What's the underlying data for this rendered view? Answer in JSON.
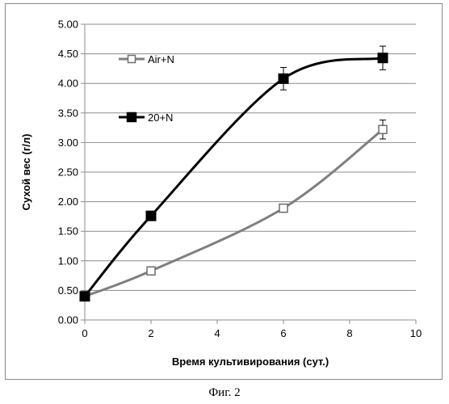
{
  "caption": "Фиг. 2",
  "chart_data": {
    "type": "line",
    "xlabel": "Время культивирования (сут.)",
    "ylabel": "Сухой вес (г/л)",
    "xlim": [
      0,
      10
    ],
    "ylim": [
      0,
      5
    ],
    "xticks": [
      0,
      2,
      4,
      6,
      8,
      10
    ],
    "xtick_labels": [
      "0",
      "2",
      "4",
      "6",
      "8",
      "10"
    ],
    "yticks": [
      0,
      0.5,
      1,
      1.5,
      2,
      2.5,
      3,
      3.5,
      4,
      4.5,
      5
    ],
    "ytick_labels": [
      "0.00",
      "0.50",
      "1.00",
      "1.50",
      "2.00",
      "2.50",
      "3.00",
      "3.50",
      "4.00",
      "4.50",
      "5.00"
    ],
    "grid": "horizontal",
    "legend_placement": "upper-left",
    "series": [
      {
        "name": "Air+N",
        "marker": "open-square",
        "color": "#7f7f7f",
        "x": [
          0,
          2,
          6,
          9
        ],
        "y": [
          0.4,
          0.83,
          1.89,
          3.22
        ],
        "err": [
          0.02,
          0.06,
          0.07,
          0.16
        ]
      },
      {
        "name": "20+N",
        "marker": "filled-square",
        "color": "#000000",
        "x": [
          0,
          2,
          6,
          9
        ],
        "y": [
          0.4,
          1.76,
          4.08,
          4.43
        ],
        "err": [
          0.02,
          0.04,
          0.19,
          0.2
        ]
      }
    ]
  }
}
